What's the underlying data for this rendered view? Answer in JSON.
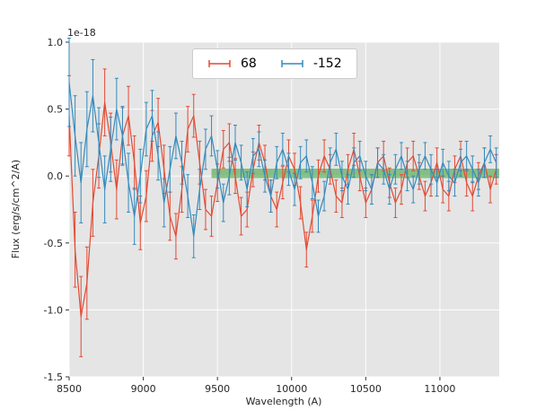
{
  "chart_data": {
    "type": "line",
    "subtype": "errorbar",
    "title": "",
    "xlabel": "Wavelength (A)",
    "ylabel": "Flux (erg/s/cm^2/A)",
    "offset_text": "1e-18",
    "xlim": [
      8500,
      11400
    ],
    "ylim": [
      -1.5,
      1.0
    ],
    "xticks": [
      8500,
      9000,
      9500,
      10000,
      10500,
      11000
    ],
    "yticks": [
      -1.5,
      -1.0,
      -0.5,
      0.0,
      0.5,
      1.0
    ],
    "grid": true,
    "legend_position": "upper center",
    "background": "#e5e5e5",
    "x": [
      8500,
      8540,
      8580,
      8620,
      8660,
      8700,
      8740,
      8780,
      8820,
      8860,
      8900,
      8940,
      8980,
      9020,
      9060,
      9100,
      9140,
      9180,
      9220,
      9260,
      9300,
      9340,
      9380,
      9420,
      9460,
      9500,
      9540,
      9580,
      9620,
      9660,
      9700,
      9740,
      9780,
      9820,
      9860,
      9900,
      9940,
      9980,
      10020,
      10060,
      10100,
      10140,
      10180,
      10220,
      10260,
      10300,
      10340,
      10380,
      10420,
      10460,
      10500,
      10540,
      10580,
      10620,
      10660,
      10700,
      10740,
      10780,
      10820,
      10860,
      10900,
      10940,
      10980,
      11020,
      11060,
      11100,
      11140,
      11180,
      11220,
      11260,
      11300,
      11340,
      11380
    ],
    "series": [
      {
        "name": "68",
        "color": "#e24a33",
        "y": [
          0.45,
          -0.55,
          -1.05,
          -0.8,
          -0.2,
          0.15,
          0.55,
          0.25,
          -0.1,
          0.3,
          0.45,
          0.1,
          -0.35,
          -0.15,
          0.3,
          0.4,
          0.05,
          -0.3,
          -0.45,
          -0.1,
          0.35,
          0.45,
          0.1,
          -0.25,
          -0.3,
          -0.05,
          0.2,
          0.25,
          0.0,
          -0.3,
          -0.25,
          0.05,
          0.25,
          0.1,
          -0.15,
          -0.25,
          -0.05,
          0.15,
          0.05,
          -0.2,
          -0.55,
          -0.3,
          0.0,
          0.15,
          0.05,
          -0.15,
          -0.2,
          0.05,
          0.2,
          0.0,
          -0.2,
          -0.1,
          0.1,
          0.15,
          -0.05,
          -0.2,
          -0.1,
          0.1,
          0.15,
          0.0,
          -0.15,
          -0.05,
          0.1,
          -0.1,
          -0.15,
          0.05,
          0.15,
          -0.05,
          -0.15,
          0.0,
          0.1,
          -0.1,
          0.05
        ],
        "yerr": [
          0.3,
          0.28,
          0.3,
          0.27,
          0.25,
          0.24,
          0.25,
          0.22,
          0.22,
          0.21,
          0.22,
          0.2,
          0.2,
          0.19,
          0.19,
          0.18,
          0.18,
          0.18,
          0.17,
          0.17,
          0.17,
          0.16,
          0.16,
          0.15,
          0.15,
          0.14,
          0.14,
          0.14,
          0.13,
          0.14,
          0.13,
          0.13,
          0.13,
          0.13,
          0.12,
          0.13,
          0.12,
          0.12,
          0.12,
          0.12,
          0.13,
          0.12,
          0.12,
          0.12,
          0.11,
          0.12,
          0.11,
          0.11,
          0.12,
          0.11,
          0.11,
          0.11,
          0.11,
          0.11,
          0.11,
          0.11,
          0.11,
          0.11,
          0.11,
          0.1,
          0.11,
          0.1,
          0.11,
          0.1,
          0.11,
          0.1,
          0.11,
          0.1,
          0.11,
          0.1,
          0.11,
          0.1,
          0.11
        ]
      },
      {
        "name": "-152",
        "color": "#348abd",
        "y": [
          0.7,
          0.3,
          -0.05,
          0.35,
          0.6,
          0.25,
          -0.1,
          0.2,
          0.5,
          0.3,
          -0.05,
          -0.3,
          0.0,
          0.35,
          0.45,
          0.15,
          -0.2,
          0.05,
          0.3,
          0.1,
          -0.15,
          -0.45,
          -0.1,
          0.2,
          0.3,
          0.05,
          -0.2,
          0.0,
          0.25,
          0.1,
          -0.1,
          0.15,
          0.2,
          0.0,
          -0.15,
          0.1,
          0.2,
          0.05,
          -0.1,
          0.1,
          0.15,
          -0.05,
          -0.3,
          -0.15,
          0.1,
          0.2,
          0.0,
          -0.1,
          0.1,
          0.15,
          0.0,
          -0.1,
          0.1,
          0.05,
          -0.1,
          0.05,
          0.15,
          0.0,
          -0.1,
          0.05,
          0.15,
          0.05,
          -0.05,
          0.1,
          0.0,
          -0.05,
          0.1,
          0.15,
          0.05,
          -0.05,
          0.1,
          0.2,
          0.1
        ],
        "yerr": [
          0.33,
          0.3,
          0.3,
          0.28,
          0.27,
          0.26,
          0.25,
          0.24,
          0.23,
          0.22,
          0.22,
          0.21,
          0.2,
          0.2,
          0.19,
          0.18,
          0.18,
          0.17,
          0.17,
          0.16,
          0.16,
          0.16,
          0.15,
          0.15,
          0.15,
          0.14,
          0.14,
          0.14,
          0.13,
          0.13,
          0.13,
          0.13,
          0.13,
          0.12,
          0.12,
          0.12,
          0.12,
          0.12,
          0.12,
          0.12,
          0.12,
          0.12,
          0.12,
          0.11,
          0.11,
          0.12,
          0.11,
          0.11,
          0.11,
          0.11,
          0.11,
          0.11,
          0.11,
          0.11,
          0.11,
          0.11,
          0.1,
          0.11,
          0.1,
          0.11,
          0.1,
          0.11,
          0.1,
          0.1,
          0.11,
          0.1,
          0.1,
          0.11,
          0.1,
          0.1,
          0.11,
          0.1,
          0.11
        ]
      }
    ],
    "band": {
      "label": "zero-flux-band",
      "color": "#33a033",
      "opacity": 0.55,
      "x_start": 9460,
      "x_end": 11400,
      "y_low": -0.015,
      "y_high": 0.055
    }
  }
}
